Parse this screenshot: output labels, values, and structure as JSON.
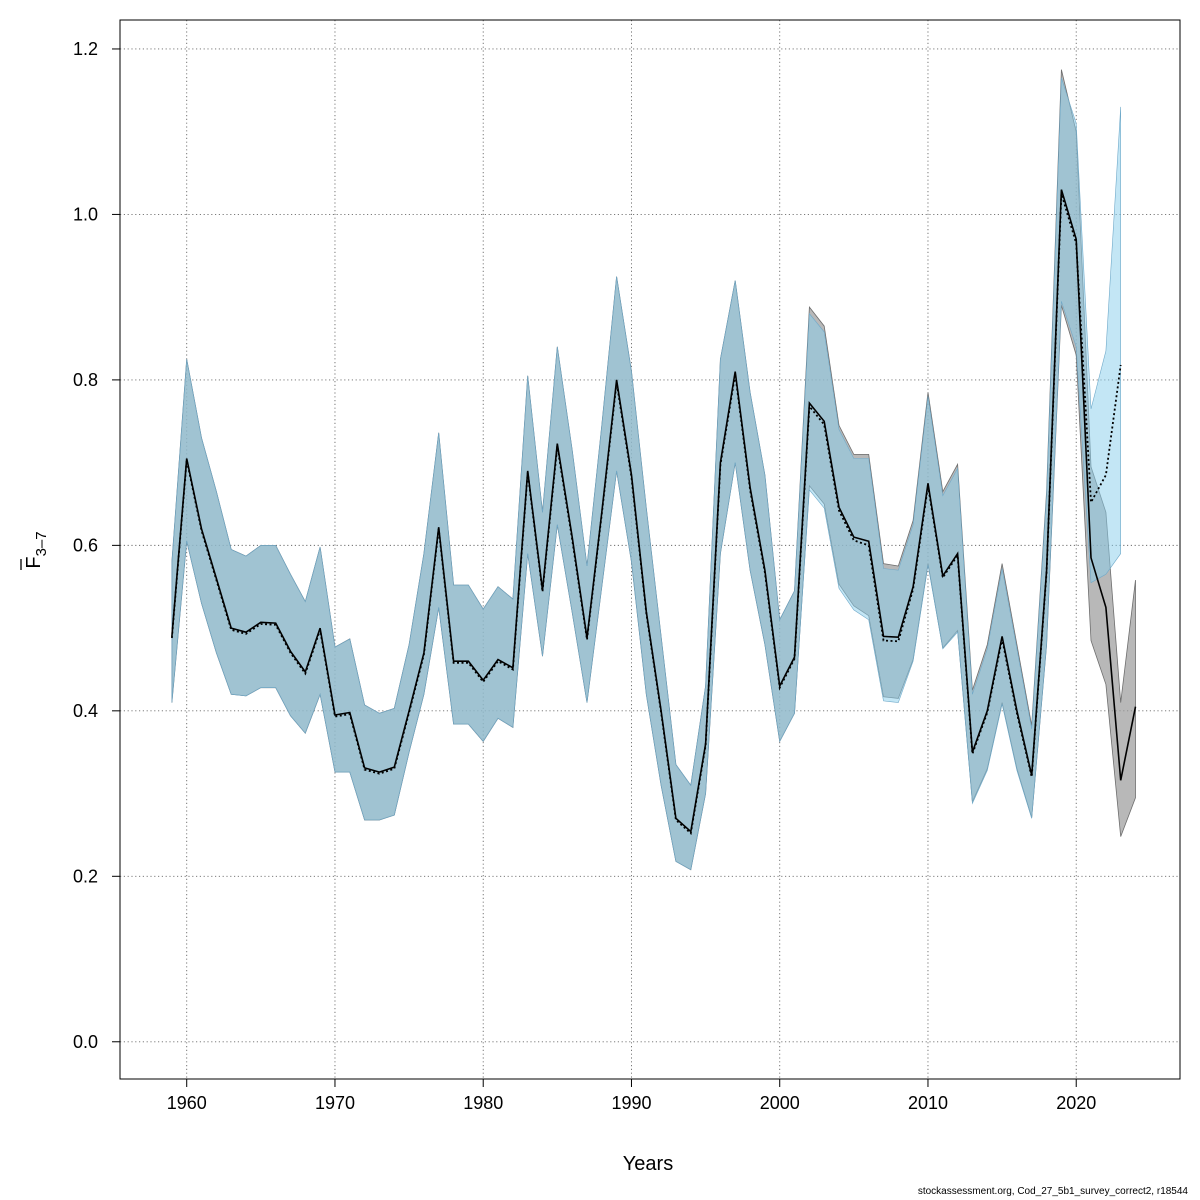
{
  "chart_data": {
    "type": "line",
    "xlabel": "Years",
    "ylabel": {
      "base": "F",
      "sub": "3–7"
    },
    "xlim": [
      1955.5,
      2027
    ],
    "ylim": [
      -0.045,
      1.235
    ],
    "xticks": [
      1960,
      1970,
      1980,
      1990,
      2000,
      2010,
      2020
    ],
    "yticks": [
      0.0,
      0.2,
      0.4,
      0.6,
      0.8,
      1.0,
      1.2
    ],
    "ytick_labels": [
      "0.0",
      "0.2",
      "0.4",
      "0.6",
      "0.8",
      "1.0",
      "1.2"
    ],
    "grid": true,
    "colors": {
      "grey_band": "#9a9a9a",
      "grey_band_edge": "#6e6e6e",
      "blue_band": "#87ceeb",
      "blue_band_edge": "#6fa9c9",
      "line": "#000000"
    },
    "series": [
      {
        "style": "solid-grey-band",
        "x": [
          1959,
          1960,
          1961,
          1962,
          1963,
          1964,
          1965,
          1966,
          1967,
          1968,
          1969,
          1970,
          1971,
          1972,
          1973,
          1974,
          1975,
          1976,
          1977,
          1978,
          1979,
          1980,
          1981,
          1982,
          1983,
          1984,
          1985,
          1986,
          1987,
          1988,
          1989,
          1990,
          1991,
          1992,
          1993,
          1994,
          1995,
          1996,
          1997,
          1998,
          1999,
          2000,
          2001,
          2002,
          2003,
          2004,
          2005,
          2006,
          2007,
          2008,
          2009,
          2010,
          2011,
          2012,
          2013,
          2014,
          2015,
          2016,
          2017,
          2018,
          2019,
          2020,
          2021,
          2022,
          2023,
          2024
        ],
        "y": [
          0.49,
          0.705,
          0.62,
          0.56,
          0.5,
          0.495,
          0.507,
          0.506,
          0.472,
          0.447,
          0.5,
          0.395,
          0.398,
          0.331,
          0.326,
          0.332,
          0.4,
          0.47,
          0.622,
          0.46,
          0.46,
          0.437,
          0.462,
          0.452,
          0.69,
          0.546,
          0.723,
          0.61,
          0.488,
          0.64,
          0.8,
          0.685,
          0.52,
          0.4,
          0.27,
          0.254,
          0.36,
          0.7,
          0.81,
          0.67,
          0.57,
          0.43,
          0.465,
          0.772,
          0.75,
          0.646,
          0.61,
          0.605,
          0.49,
          0.489,
          0.55,
          0.675,
          0.563,
          0.59,
          0.35,
          0.4,
          0.49,
          0.4,
          0.322,
          0.57,
          1.03,
          0.97,
          0.585,
          0.525,
          0.316,
          0.405
        ],
        "lower": [
          0.41,
          0.605,
          0.53,
          0.47,
          0.42,
          0.418,
          0.428,
          0.428,
          0.394,
          0.373,
          0.42,
          0.326,
          0.326,
          0.268,
          0.268,
          0.274,
          0.35,
          0.42,
          0.525,
          0.384,
          0.384,
          0.363,
          0.391,
          0.38,
          0.59,
          0.466,
          0.625,
          0.519,
          0.41,
          0.55,
          0.69,
          0.58,
          0.42,
          0.31,
          0.218,
          0.208,
          0.3,
          0.59,
          0.7,
          0.57,
          0.48,
          0.363,
          0.397,
          0.672,
          0.65,
          0.553,
          0.527,
          0.515,
          0.417,
          0.415,
          0.462,
          0.578,
          0.476,
          0.497,
          0.29,
          0.33,
          0.41,
          0.33,
          0.271,
          0.48,
          0.89,
          0.83,
          0.485,
          0.432,
          0.248,
          0.295
        ],
        "upper": [
          0.58,
          0.825,
          0.73,
          0.665,
          0.595,
          0.587,
          0.6,
          0.6,
          0.565,
          0.532,
          0.598,
          0.477,
          0.487,
          0.407,
          0.397,
          0.403,
          0.48,
          0.59,
          0.736,
          0.552,
          0.552,
          0.523,
          0.55,
          0.535,
          0.805,
          0.64,
          0.84,
          0.715,
          0.575,
          0.745,
          0.925,
          0.81,
          0.645,
          0.49,
          0.335,
          0.31,
          0.43,
          0.825,
          0.92,
          0.785,
          0.685,
          0.51,
          0.545,
          0.888,
          0.865,
          0.745,
          0.71,
          0.71,
          0.578,
          0.575,
          0.63,
          0.785,
          0.665,
          0.698,
          0.425,
          0.48,
          0.578,
          0.48,
          0.382,
          0.665,
          1.175,
          1.1,
          0.695,
          0.64,
          0.41,
          0.558
        ]
      },
      {
        "style": "dotted-blue-band",
        "x": [
          1959,
          1960,
          1961,
          1962,
          1963,
          1964,
          1965,
          1966,
          1967,
          1968,
          1969,
          1970,
          1971,
          1972,
          1973,
          1974,
          1975,
          1976,
          1977,
          1978,
          1979,
          1980,
          1981,
          1982,
          1983,
          1984,
          1985,
          1986,
          1987,
          1988,
          1989,
          1990,
          1991,
          1992,
          1993,
          1994,
          1995,
          1996,
          1997,
          1998,
          1999,
          2000,
          2001,
          2002,
          2003,
          2004,
          2005,
          2006,
          2007,
          2008,
          2009,
          2010,
          2011,
          2012,
          2013,
          2014,
          2015,
          2016,
          2017,
          2018,
          2019,
          2020,
          2021,
          2022,
          2023
        ],
        "y": [
          0.488,
          0.703,
          0.618,
          0.558,
          0.498,
          0.493,
          0.505,
          0.504,
          0.47,
          0.445,
          0.498,
          0.393,
          0.396,
          0.329,
          0.324,
          0.33,
          0.398,
          0.468,
          0.62,
          0.458,
          0.458,
          0.435,
          0.46,
          0.45,
          0.688,
          0.544,
          0.72,
          0.607,
          0.486,
          0.638,
          0.797,
          0.682,
          0.518,
          0.398,
          0.268,
          0.252,
          0.358,
          0.697,
          0.807,
          0.667,
          0.567,
          0.428,
          0.463,
          0.768,
          0.746,
          0.642,
          0.606,
          0.6,
          0.485,
          0.484,
          0.547,
          0.672,
          0.561,
          0.588,
          0.348,
          0.398,
          0.487,
          0.397,
          0.32,
          0.568,
          1.025,
          0.965,
          0.652,
          0.685,
          0.818
        ],
        "lower": [
          0.41,
          0.605,
          0.53,
          0.47,
          0.42,
          0.418,
          0.428,
          0.428,
          0.394,
          0.373,
          0.42,
          0.326,
          0.326,
          0.268,
          0.268,
          0.274,
          0.35,
          0.42,
          0.525,
          0.384,
          0.384,
          0.363,
          0.391,
          0.38,
          0.59,
          0.466,
          0.625,
          0.519,
          0.41,
          0.55,
          0.69,
          0.58,
          0.42,
          0.31,
          0.218,
          0.208,
          0.3,
          0.59,
          0.7,
          0.57,
          0.48,
          0.363,
          0.397,
          0.667,
          0.645,
          0.548,
          0.522,
          0.51,
          0.412,
          0.41,
          0.46,
          0.576,
          0.475,
          0.495,
          0.288,
          0.328,
          0.408,
          0.328,
          0.27,
          0.48,
          0.895,
          0.84,
          0.555,
          0.565,
          0.59
        ],
        "upper": [
          0.58,
          0.825,
          0.73,
          0.665,
          0.595,
          0.587,
          0.6,
          0.6,
          0.565,
          0.532,
          0.598,
          0.477,
          0.487,
          0.407,
          0.397,
          0.403,
          0.48,
          0.59,
          0.736,
          0.552,
          0.552,
          0.523,
          0.55,
          0.535,
          0.805,
          0.64,
          0.84,
          0.715,
          0.575,
          0.745,
          0.925,
          0.81,
          0.645,
          0.49,
          0.335,
          0.31,
          0.43,
          0.825,
          0.92,
          0.785,
          0.685,
          0.51,
          0.545,
          0.88,
          0.858,
          0.74,
          0.705,
          0.705,
          0.572,
          0.57,
          0.625,
          0.78,
          0.66,
          0.693,
          0.42,
          0.475,
          0.572,
          0.475,
          0.378,
          0.66,
          1.165,
          1.11,
          0.765,
          0.835,
          1.13
        ]
      }
    ]
  },
  "footer": "stockassessment.org, Cod_27_5b1_survey_correct2, r18544"
}
